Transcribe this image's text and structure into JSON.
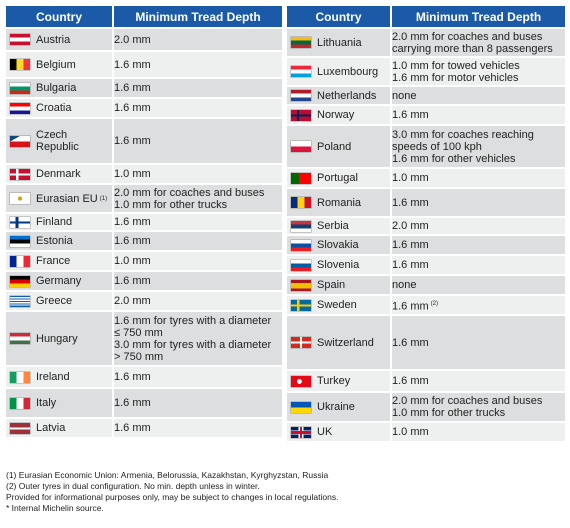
{
  "header": {
    "country": "Country",
    "depth": "Minimum Tread Depth"
  },
  "left_rows": [
    {
      "country": "Austria",
      "depth": [
        "2.0 mm"
      ],
      "flag": "at",
      "h": 23
    },
    {
      "country": "Belgium",
      "depth": [
        "1.6 mm"
      ],
      "flag": "be",
      "h": 27
    },
    {
      "country": "Bulgaria",
      "depth": [
        "1.6 mm"
      ],
      "flag": "bg",
      "h": 20
    },
    {
      "country": "Croatia",
      "depth": [
        "1.6 mm"
      ],
      "flag": "hr",
      "h": 20
    },
    {
      "country": "Czech Republic",
      "depth": [
        "1.6 mm"
      ],
      "flag": "cz",
      "h": 46
    },
    {
      "country": "Denmark",
      "depth": [
        "1.0 mm"
      ],
      "flag": "dk",
      "h": 20
    },
    {
      "country": "Eurasian EU",
      "sup": "(1)",
      "depth": [
        "2.0 mm for coaches and buses",
        "1.0 mm for other trucks"
      ],
      "flag": "eaeu",
      "h": 29
    },
    {
      "country": "Finland",
      "depth": [
        "1.6 mm"
      ],
      "flag": "fi",
      "h": 18
    },
    {
      "country": "Estonia",
      "depth": [
        "1.6 mm"
      ],
      "flag": "ee",
      "h": 20
    },
    {
      "country": "France",
      "depth": [
        "1.0 mm"
      ],
      "flag": "fr",
      "h": 20
    },
    {
      "country": "Germany",
      "depth": [
        "1.6 mm"
      ],
      "flag": "de",
      "h": 20
    },
    {
      "country": "Greece",
      "depth": [
        "2.0 mm"
      ],
      "flag": "gr",
      "h": 20
    },
    {
      "country": "Hungary",
      "depth": [
        "1.6 mm for tyres with a diameter",
        "≤ 750 mm",
        "3.0 mm for tyres with a diameter",
        "> 750 mm"
      ],
      "flag": "hu",
      "h": 55
    },
    {
      "country": "Ireland",
      "depth": [
        "1.6 mm"
      ],
      "flag": "ie",
      "h": 22
    },
    {
      "country": "Italy",
      "depth": [
        "1.6 mm"
      ],
      "flag": "it",
      "h": 30
    },
    {
      "country": "Latvia",
      "depth": [
        "1.6 mm"
      ],
      "flag": "lv",
      "h": 20
    }
  ],
  "right_rows": [
    {
      "country": "Lithuania",
      "depth": [
        "2.0 mm for coaches and buses",
        "carrying more than 8 passengers"
      ],
      "flag": "lt",
      "h": 29
    },
    {
      "country": "Luxembourg",
      "depth": [
        "1.0 mm for towed vehicles",
        "1.6 mm for motor vehicles"
      ],
      "flag": "lu",
      "h": 29
    },
    {
      "country": "Netherlands",
      "depth": [
        "none"
      ],
      "flag": "nl",
      "h": 19
    },
    {
      "country": "Norway",
      "depth": [
        "1.6 mm"
      ],
      "flag": "no",
      "h": 20
    },
    {
      "country": "Poland",
      "depth": [
        "3.0 mm for coaches reaching",
        "speeds of 100 kph",
        "1.6 mm for other vehicles"
      ],
      "flag": "pl",
      "h": 43
    },
    {
      "country": "Portugal",
      "depth": [
        "1.0 mm"
      ],
      "flag": "pt",
      "h": 20
    },
    {
      "country": "Romania",
      "depth": [
        "1.6 mm"
      ],
      "flag": "ro",
      "h": 29
    },
    {
      "country": "Serbia",
      "depth": [
        "2.0 mm"
      ],
      "flag": "rs",
      "h": 18
    },
    {
      "country": "Slovakia",
      "depth": [
        "1.6 mm"
      ],
      "flag": "sk",
      "h": 20
    },
    {
      "country": "Slovenia",
      "depth": [
        "1.6 mm"
      ],
      "flag": "si",
      "h": 20
    },
    {
      "country": "Spain",
      "depth": [
        "none"
      ],
      "flag": "es",
      "h": 20
    },
    {
      "country": "Sweden",
      "depth": [
        "1.6 mm"
      ],
      "sup": "(2)",
      "flag": "se",
      "h": 20
    },
    {
      "country": "Switzerland",
      "depth": [
        "1.6 mm"
      ],
      "flag": "ch",
      "h": 55
    },
    {
      "country": "Turkey",
      "depth": [
        "1.6 mm"
      ],
      "flag": "tr",
      "h": 22
    },
    {
      "country": "Ukraine",
      "depth": [
        "2.0 mm for coaches and buses",
        "1.0 mm for other trucks"
      ],
      "flag": "ua",
      "h": 30
    },
    {
      "country": "UK",
      "depth": [
        "1.0 mm"
      ],
      "flag": "uk",
      "h": 20
    }
  ],
  "notes": [
    "(1) Eurasian Economic Union: Armenia, Belorussia, Kazakhstan, Kyrghyzstan, Russia",
    "(2) Outer tyres in dual configuration. No min. depth unless in winter.",
    "Provided for informational purposes only, may be subject to changes in local regulations.",
    "* Internal Michelin source."
  ]
}
